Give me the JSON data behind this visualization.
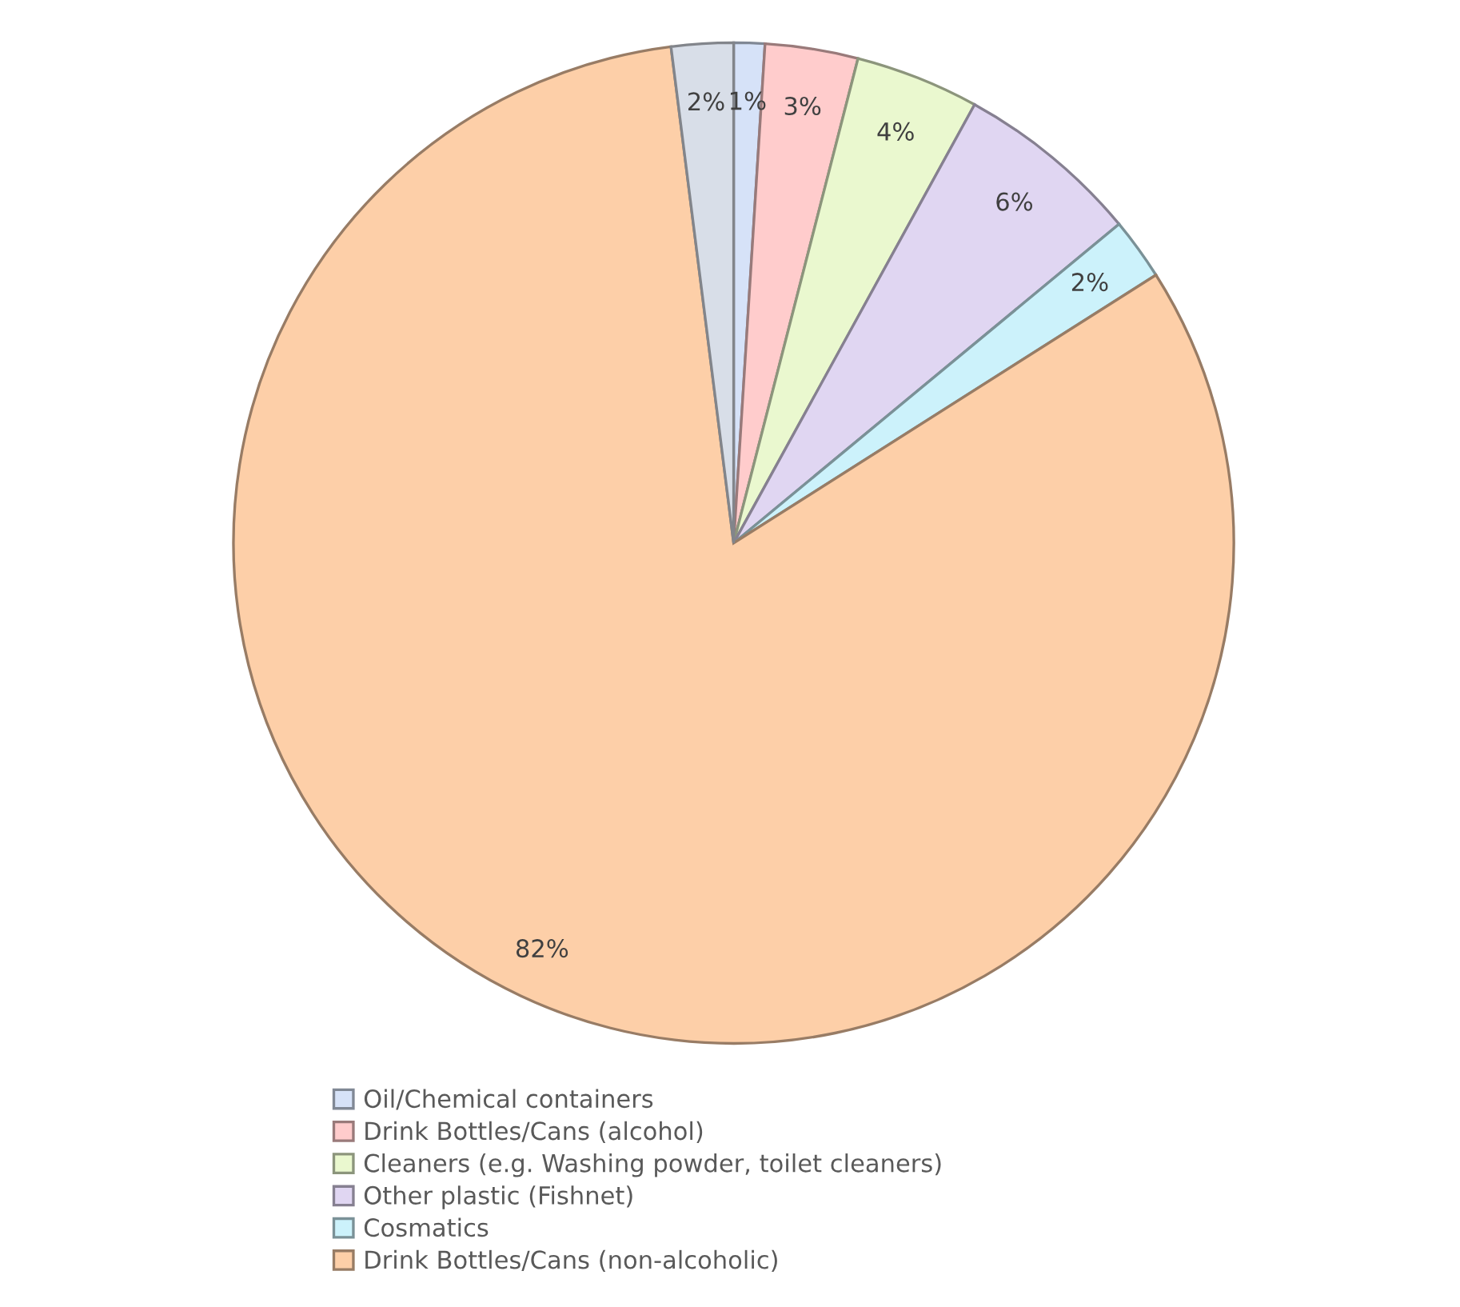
{
  "chart_data": {
    "type": "pie",
    "categories": [
      "Oil/Chemical containers",
      "Drink Bottles/Cans (alcohol)",
      "Cleaners (e.g. Washing powder, toilet cleaners)",
      "Other plastic (Fishnet)",
      "Cosmatics",
      "Drink Bottles/Cans (non-alcoholic)",
      null
    ],
    "values": [
      1,
      3,
      4,
      6,
      2,
      82,
      2
    ],
    "value_labels": [
      "1%",
      "3%",
      "4%",
      "6%",
      "2%",
      "82%",
      "2%"
    ],
    "colors": [
      "#d6e2f8",
      "#ffcccc",
      "#eaf8cf",
      "#e0d6f2",
      "#ccf2fb",
      "#fdcfa8",
      "#d8dee8"
    ],
    "legend": "bottom"
  }
}
